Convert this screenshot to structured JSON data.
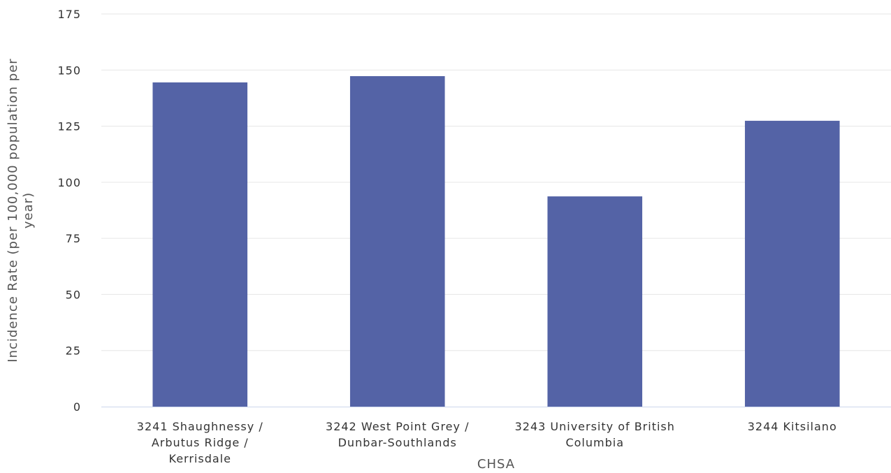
{
  "colors": {
    "bar": "#5463a6",
    "grid": "#e6e6e6",
    "axis": "#ccd6eb"
  },
  "chart_data": {
    "type": "bar",
    "categories": [
      [
        "3241 Shaughnessy /",
        "Arbutus Ridge /",
        "Kerrisdale"
      ],
      [
        "3242 West Point Grey /",
        "Dunbar-Southlands"
      ],
      [
        "3243 University of British",
        "Columbia"
      ],
      [
        "3244 Kitsilano"
      ]
    ],
    "values": [
      144.5,
      147.3,
      93.7,
      127.4
    ],
    "xlabel": "CHSA",
    "ylabel": [
      "Incidence Rate (per 100,000 population per",
      "year)"
    ],
    "ylim": [
      0,
      175
    ],
    "yticks": [
      0,
      25,
      50,
      75,
      100,
      125,
      150,
      175
    ],
    "grid": true
  }
}
